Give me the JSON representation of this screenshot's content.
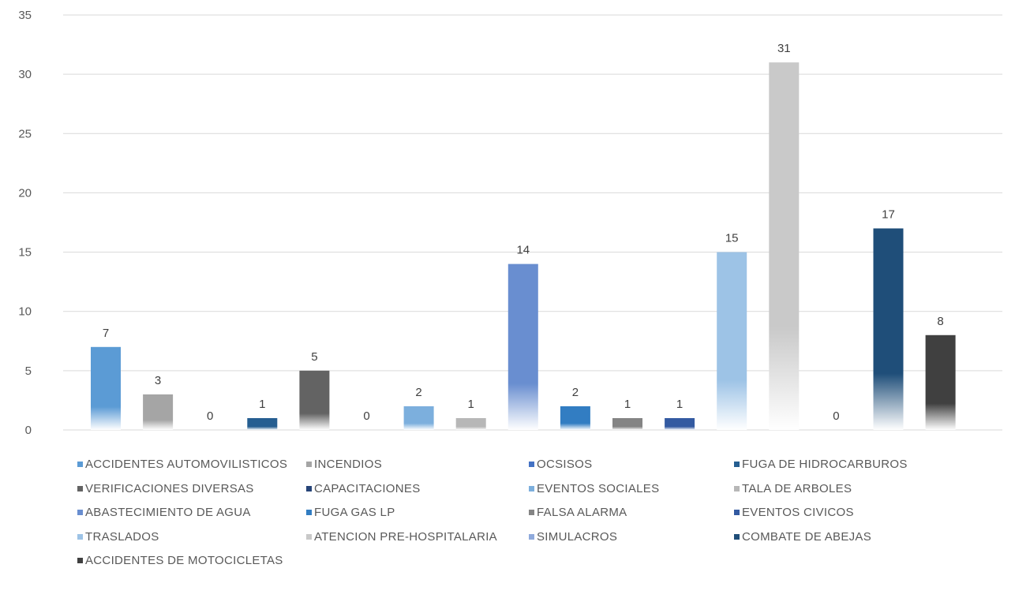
{
  "chart_data": {
    "type": "bar",
    "title": "",
    "xlabel": "",
    "ylabel": "",
    "ylim": [
      0,
      35
    ],
    "yticks": [
      0,
      5,
      10,
      15,
      20,
      25,
      30,
      35
    ],
    "grid": true,
    "legend_position": "bottom",
    "series": [
      {
        "name": "ACCIDENTES AUTOMOVILISTICOS",
        "value": 7,
        "color": "#5b9bd5"
      },
      {
        "name": "INCENDIOS",
        "value": 3,
        "color": "#a5a5a5"
      },
      {
        "name": "OCSISOS",
        "value": 0,
        "color": "#4472c4"
      },
      {
        "name": "FUGA DE HIDROCARBUROS",
        "value": 1,
        "color": "#255e91"
      },
      {
        "name": "VERIFICACIONES DIVERSAS",
        "value": 5,
        "color": "#636363"
      },
      {
        "name": "CAPACITACIONES",
        "value": 0,
        "color": "#264478"
      },
      {
        "name": "EVENTOS SOCIALES",
        "value": 2,
        "color": "#7cafdd"
      },
      {
        "name": "TALA DE ARBOLES",
        "value": 1,
        "color": "#b7b7b7"
      },
      {
        "name": "ABASTECIMIENTO DE AGUA",
        "value": 14,
        "color": "#698ed0"
      },
      {
        "name": "FUGA GAS LP",
        "value": 2,
        "color": "#327dc2"
      },
      {
        "name": "FALSA ALARMA",
        "value": 1,
        "color": "#848484"
      },
      {
        "name": "EVENTOS CIVICOS",
        "value": 1,
        "color": "#335aa1"
      },
      {
        "name": "TRASLADOS",
        "value": 15,
        "color": "#9dc3e6"
      },
      {
        "name": "ATENCION PRE-HOSPITALARIA",
        "value": 31,
        "color": "#c9c9c9"
      },
      {
        "name": "SIMULACROS",
        "value": 0,
        "color": "#8faadc"
      },
      {
        "name": "COMBATE DE ABEJAS",
        "value": 17,
        "color": "#1f4e79"
      },
      {
        "name": "ACCIDENTES DE MOTOCICLETAS",
        "value": 8,
        "color": "#404040"
      }
    ]
  }
}
